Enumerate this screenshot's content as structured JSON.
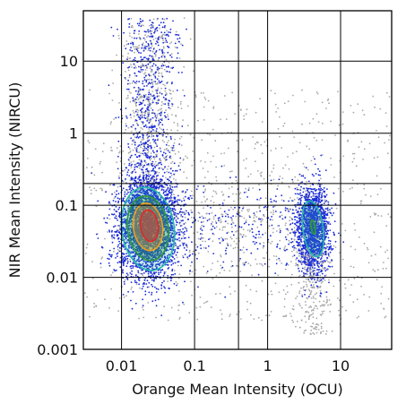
{
  "chart_data": {
    "type": "scatter",
    "scale": {
      "x": "log",
      "y": "log"
    },
    "xlim": [
      0.003,
      50
    ],
    "ylim": [
      0.001,
      50
    ],
    "xlabel": "Orange Mean Intensity (OCU)",
    "ylabel": "NIR Mean Intensity (NIRCU)",
    "x_ticks": [
      {
        "value": 0.01,
        "label": "0.01"
      },
      {
        "value": 0.1,
        "label": "0.1"
      },
      {
        "value": 1,
        "label": "1"
      },
      {
        "value": 10,
        "label": "10"
      }
    ],
    "y_ticks": [
      {
        "value": 0.001,
        "label": "0.001"
      },
      {
        "value": 0.01,
        "label": "0.01"
      },
      {
        "value": 0.1,
        "label": "0.1"
      },
      {
        "value": 1,
        "label": "1"
      },
      {
        "value": 10,
        "label": "10"
      }
    ],
    "gate_lines_x": [
      0.01,
      0.1,
      0.4,
      1,
      10
    ],
    "gate_lines_y": [
      0.01,
      0.1,
      0.2,
      1,
      10
    ],
    "grid": true,
    "legend": "none",
    "point_colors": {
      "dense": "#1a2bd8",
      "sparse": "#a8a8a8"
    },
    "contour_colors": [
      "#26b8a8",
      "#2e9a3a",
      "#f2a020",
      "#e02828"
    ],
    "populations": [
      {
        "center_x": 0.023,
        "center_y": 0.05,
        "spread_log_x": 0.2,
        "spread_log_y": 0.34,
        "tail": "upward"
      },
      {
        "center_x": 4.2,
        "center_y": 0.045,
        "spread_log_x": 0.11,
        "spread_log_y": 0.3,
        "tail": "none"
      }
    ],
    "contours": [
      {
        "population": 0,
        "level": 1,
        "center_x": 0.023,
        "center_y": 0.047,
        "rx_log": 0.36,
        "ry_log": 0.58
      },
      {
        "population": 0,
        "level": 2,
        "center_x": 0.023,
        "center_y": 0.048,
        "rx_log": 0.28,
        "ry_log": 0.45
      },
      {
        "population": 0,
        "level": 3,
        "center_x": 0.023,
        "center_y": 0.05,
        "rx_log": 0.2,
        "ry_log": 0.33
      },
      {
        "population": 0,
        "level": 4,
        "center_x": 0.024,
        "center_y": 0.052,
        "rx_log": 0.12,
        "ry_log": 0.22
      },
      {
        "population": 1,
        "level": 1,
        "center_x": 4.2,
        "center_y": 0.047,
        "rx_log": 0.14,
        "ry_log": 0.39
      },
      {
        "population": 1,
        "level": 2,
        "center_x": 4.2,
        "center_y": 0.05,
        "rx_log": 0.03,
        "ry_log": 0.1
      }
    ]
  }
}
